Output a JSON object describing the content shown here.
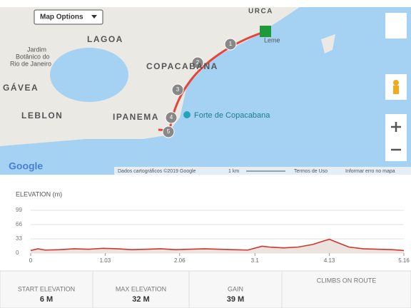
{
  "map": {
    "options_button": "Map Options",
    "places": [
      "URCA",
      "LAGOA",
      "Jardim",
      "Botânico do",
      "Rio de Janeiro",
      "COPACABANA",
      "GÁVEA",
      "LEBLON",
      "IPANEMA",
      "Forte de Copacabana",
      "Leme"
    ],
    "markers": [
      "1",
      "2",
      "3",
      "4",
      "5"
    ],
    "logo": "Google",
    "attribution": "Dados cartográficos ©2019 Google",
    "scale": "1 km",
    "terms": "Termos de Uso",
    "report": "Informar erro no mapa"
  },
  "chart_data": {
    "type": "area",
    "title": "ELEVATION (m)",
    "x": [
      0,
      0.1,
      0.2,
      0.4,
      0.6,
      0.8,
      1.0,
      1.2,
      1.4,
      1.6,
      1.8,
      2.0,
      2.2,
      2.4,
      2.6,
      2.8,
      3.0,
      3.2,
      3.3,
      3.5,
      3.7,
      3.9,
      4.05,
      4.13,
      4.25,
      4.4,
      4.6,
      4.8,
      5.0,
      5.16
    ],
    "series": [
      {
        "name": "Elevation",
        "color": "#d0342c",
        "values": [
          6,
          10,
          7,
          8,
          10,
          9,
          11,
          10,
          8,
          9,
          10,
          8,
          9,
          10,
          9,
          8,
          7,
          16,
          14,
          12,
          14,
          20,
          28,
          32,
          24,
          14,
          10,
          9,
          8,
          6
        ]
      }
    ],
    "xlim": [
      0,
      5.16
    ],
    "xticks": [
      0,
      1.03,
      2.06,
      3.1,
      4.13,
      5.16
    ],
    "ylim": [
      0,
      99
    ],
    "yticks": [
      0,
      33,
      66,
      99
    ],
    "grid": true
  },
  "stats": [
    {
      "label": "START ELEVATION",
      "value": "6 M"
    },
    {
      "label": "MAX ELEVATION",
      "value": "32 M"
    },
    {
      "label": "GAIN",
      "value": "39 M"
    },
    {
      "label": "CLIMBS ON ROUTE"
    }
  ]
}
